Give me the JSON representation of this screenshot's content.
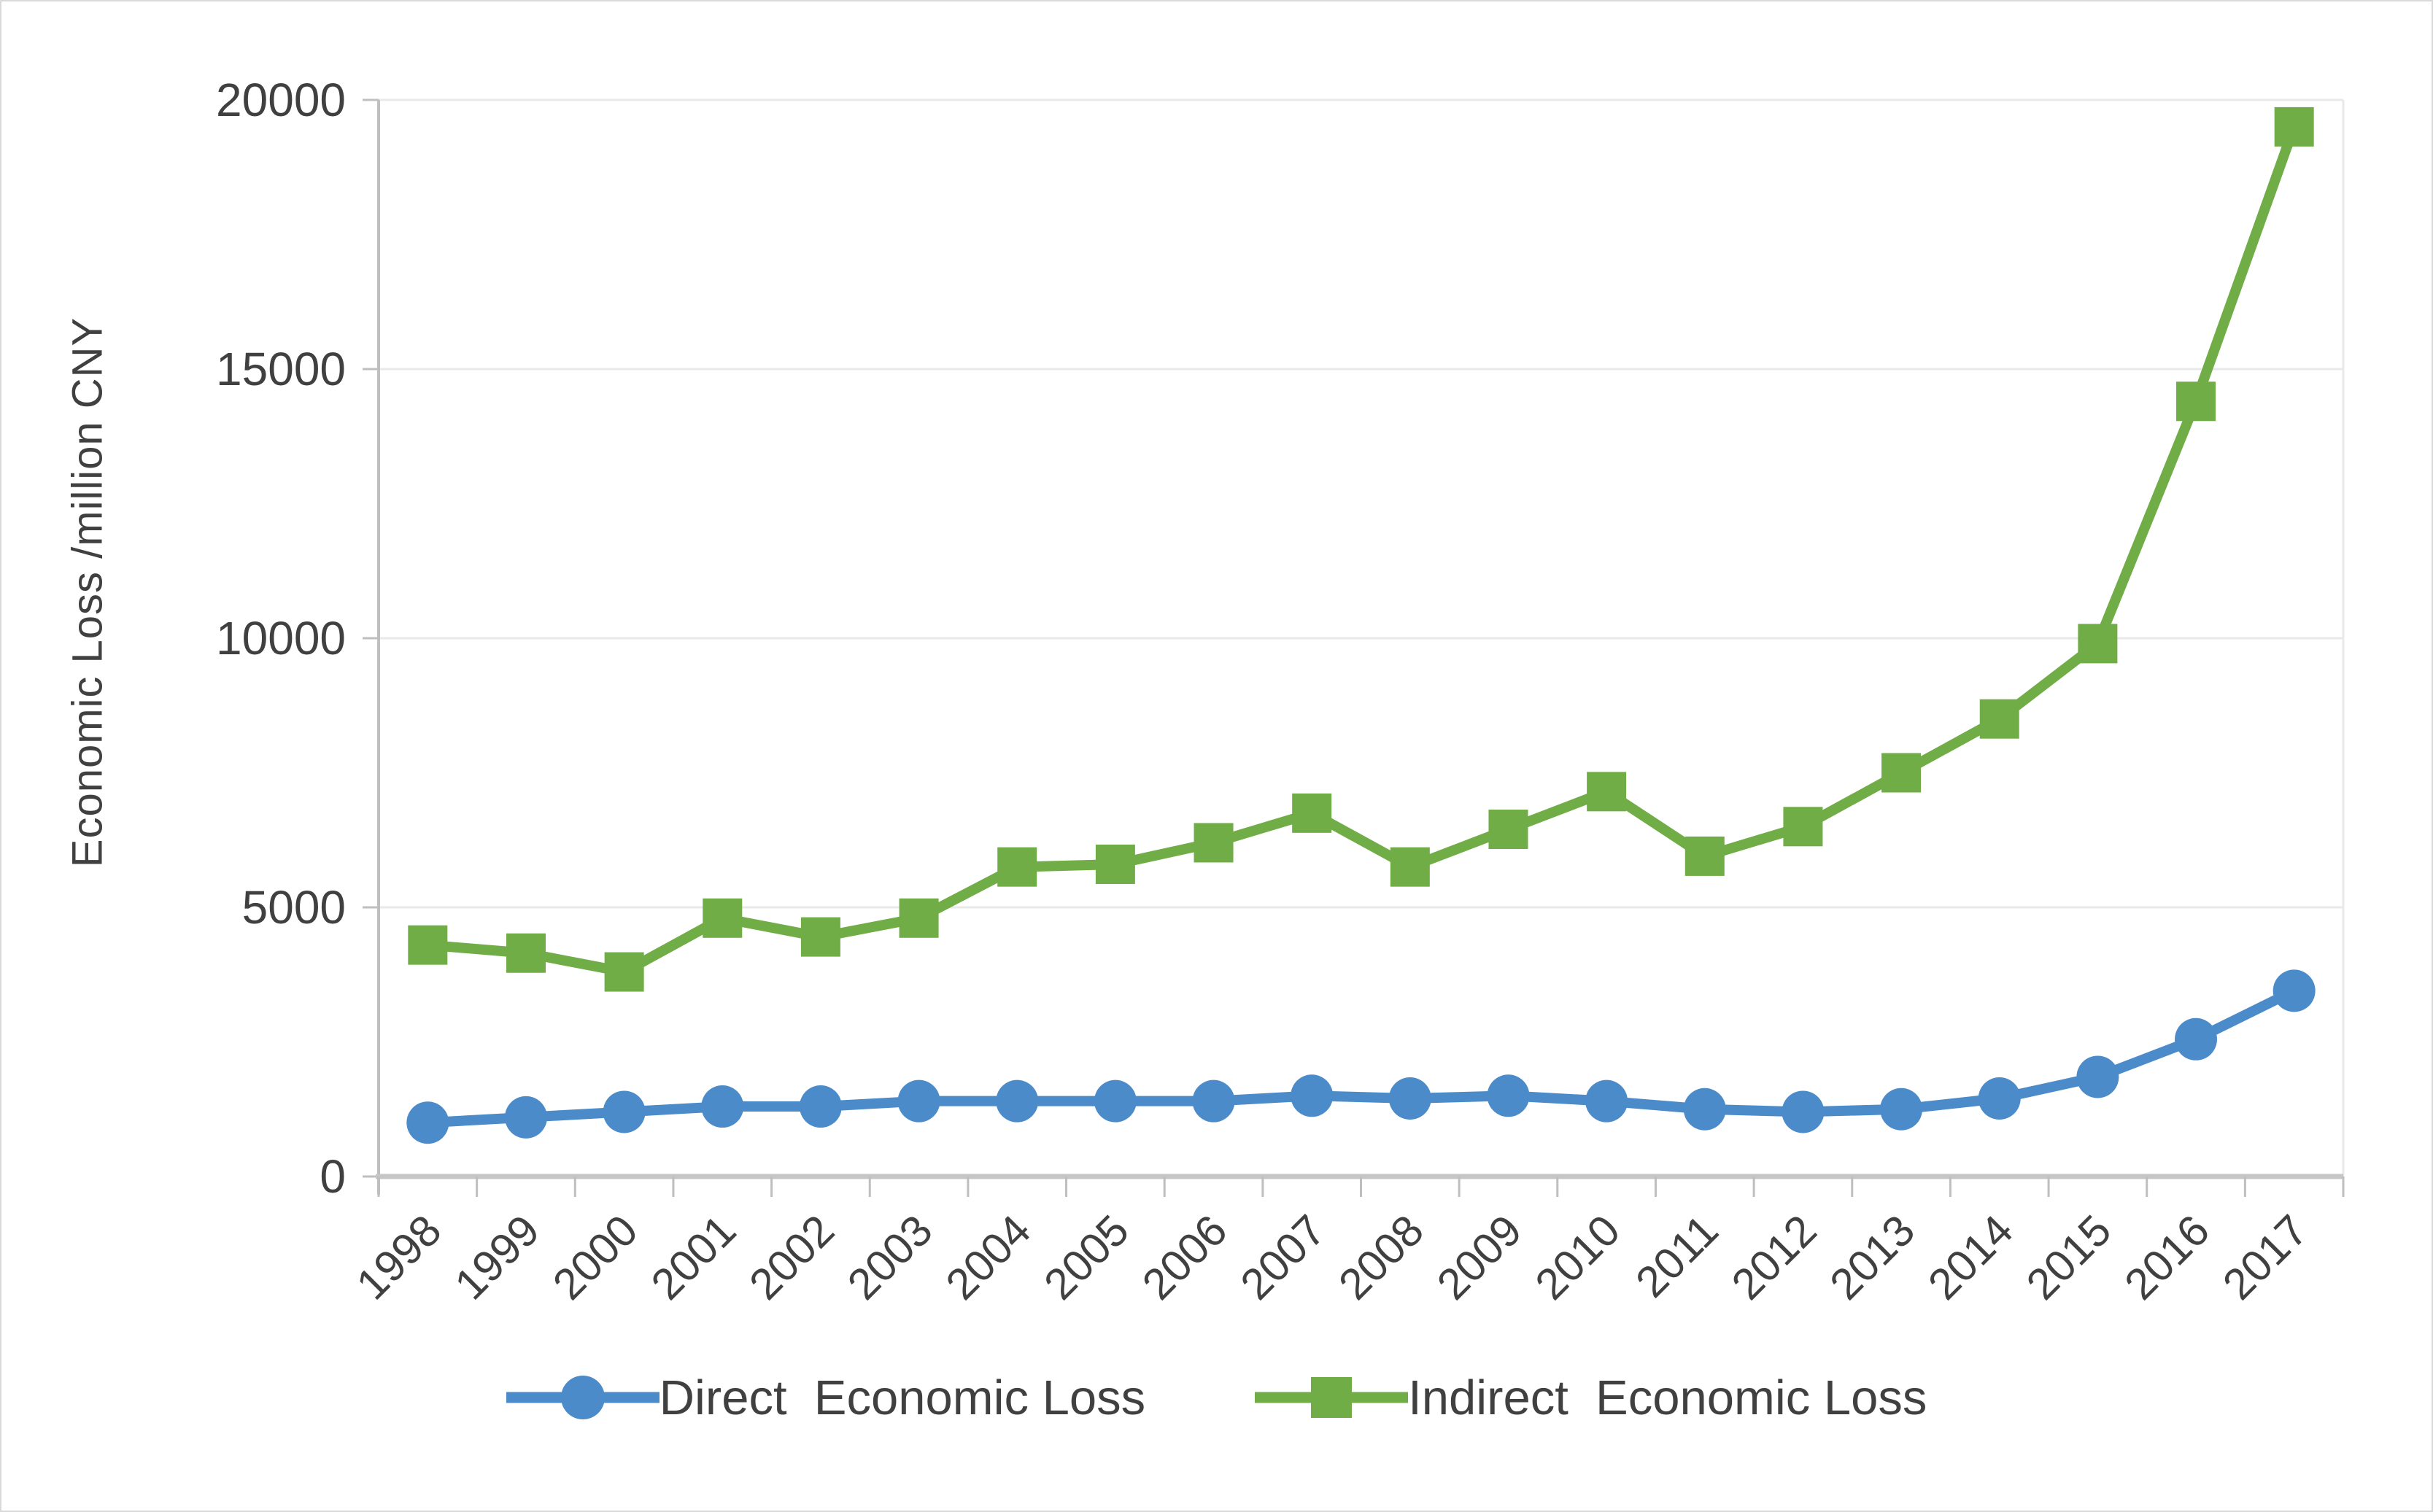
{
  "chart_data": {
    "type": "line",
    "title": "",
    "xlabel": "",
    "ylabel": "Economic Loss /million CNY",
    "ylim": [
      0,
      20000
    ],
    "yticks": [
      0,
      5000,
      10000,
      15000,
      20000
    ],
    "grid": true,
    "legend_position": "bottom",
    "categories": [
      "1998",
      "1999",
      "2000",
      "2001",
      "2002",
      "2003",
      "2004",
      "2005",
      "2006",
      "2007",
      "2008",
      "2009",
      "2010",
      "2011",
      "2012",
      "2013",
      "2014",
      "2015",
      "2016",
      "2017"
    ],
    "series": [
      {
        "name": "Direct  Economic Loss",
        "marker": "circle",
        "color": "#4B8BC9",
        "values": [
          1000,
          1100,
          1200,
          1300,
          1300,
          1400,
          1400,
          1400,
          1400,
          1500,
          1450,
          1500,
          1400,
          1250,
          1200,
          1250,
          1450,
          1850,
          2550,
          3450
        ]
      },
      {
        "name": "Indirect  Economic Loss",
        "marker": "square",
        "color": "#70AD47",
        "values": [
          4300,
          4150,
          3800,
          4800,
          4450,
          4800,
          5750,
          5800,
          6200,
          6750,
          5750,
          6450,
          7150,
          5950,
          6500,
          7500,
          8500,
          9900,
          14400,
          19500
        ]
      }
    ]
  },
  "styles": {
    "grid_color": "#e9e9e9",
    "axis_color": "#bfbfbf",
    "x_axis_color": "#c6c6c6",
    "tick_label_color": "#404040",
    "legend_text_color": "#404040",
    "background": "#ffffff",
    "frame_border_color": "#d9d9d9"
  }
}
